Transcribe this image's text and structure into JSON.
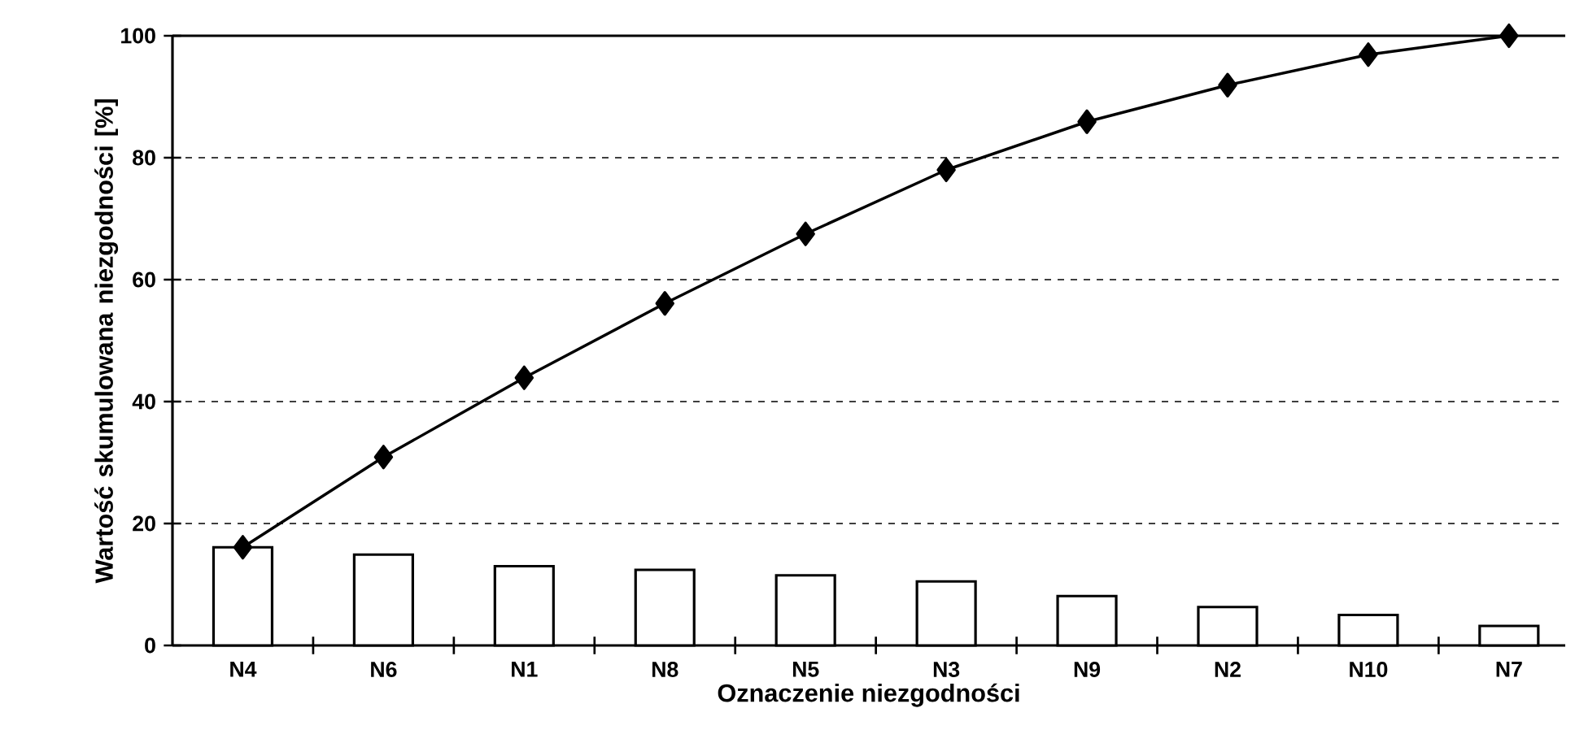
{
  "chart_data": {
    "type": "bar",
    "xlabel": "Oznaczenie niezgodności",
    "ylabel": "Wartość skumulowana niezgodności [%]",
    "categories": [
      "N4",
      "N6",
      "N1",
      "N8",
      "N5",
      "N3",
      "N9",
      "N2",
      "N10",
      "N7"
    ],
    "ylim": [
      0,
      100
    ],
    "yticks": [
      0,
      20,
      40,
      60,
      80,
      100
    ],
    "grid": "y",
    "series": [
      {
        "color": "#ffffff",
        "values": [
          16.1,
          14.9,
          13.0,
          12.4,
          11.5,
          10.5,
          8.1,
          6.3,
          5.0,
          3.2
        ]
      },
      {
        "type": "line",
        "color": "#000000",
        "marker": "diamond",
        "values": [
          16.1,
          30.9,
          43.9,
          56.1,
          67.5,
          78.0,
          85.9,
          91.9,
          96.9,
          100
        ]
      }
    ]
  }
}
